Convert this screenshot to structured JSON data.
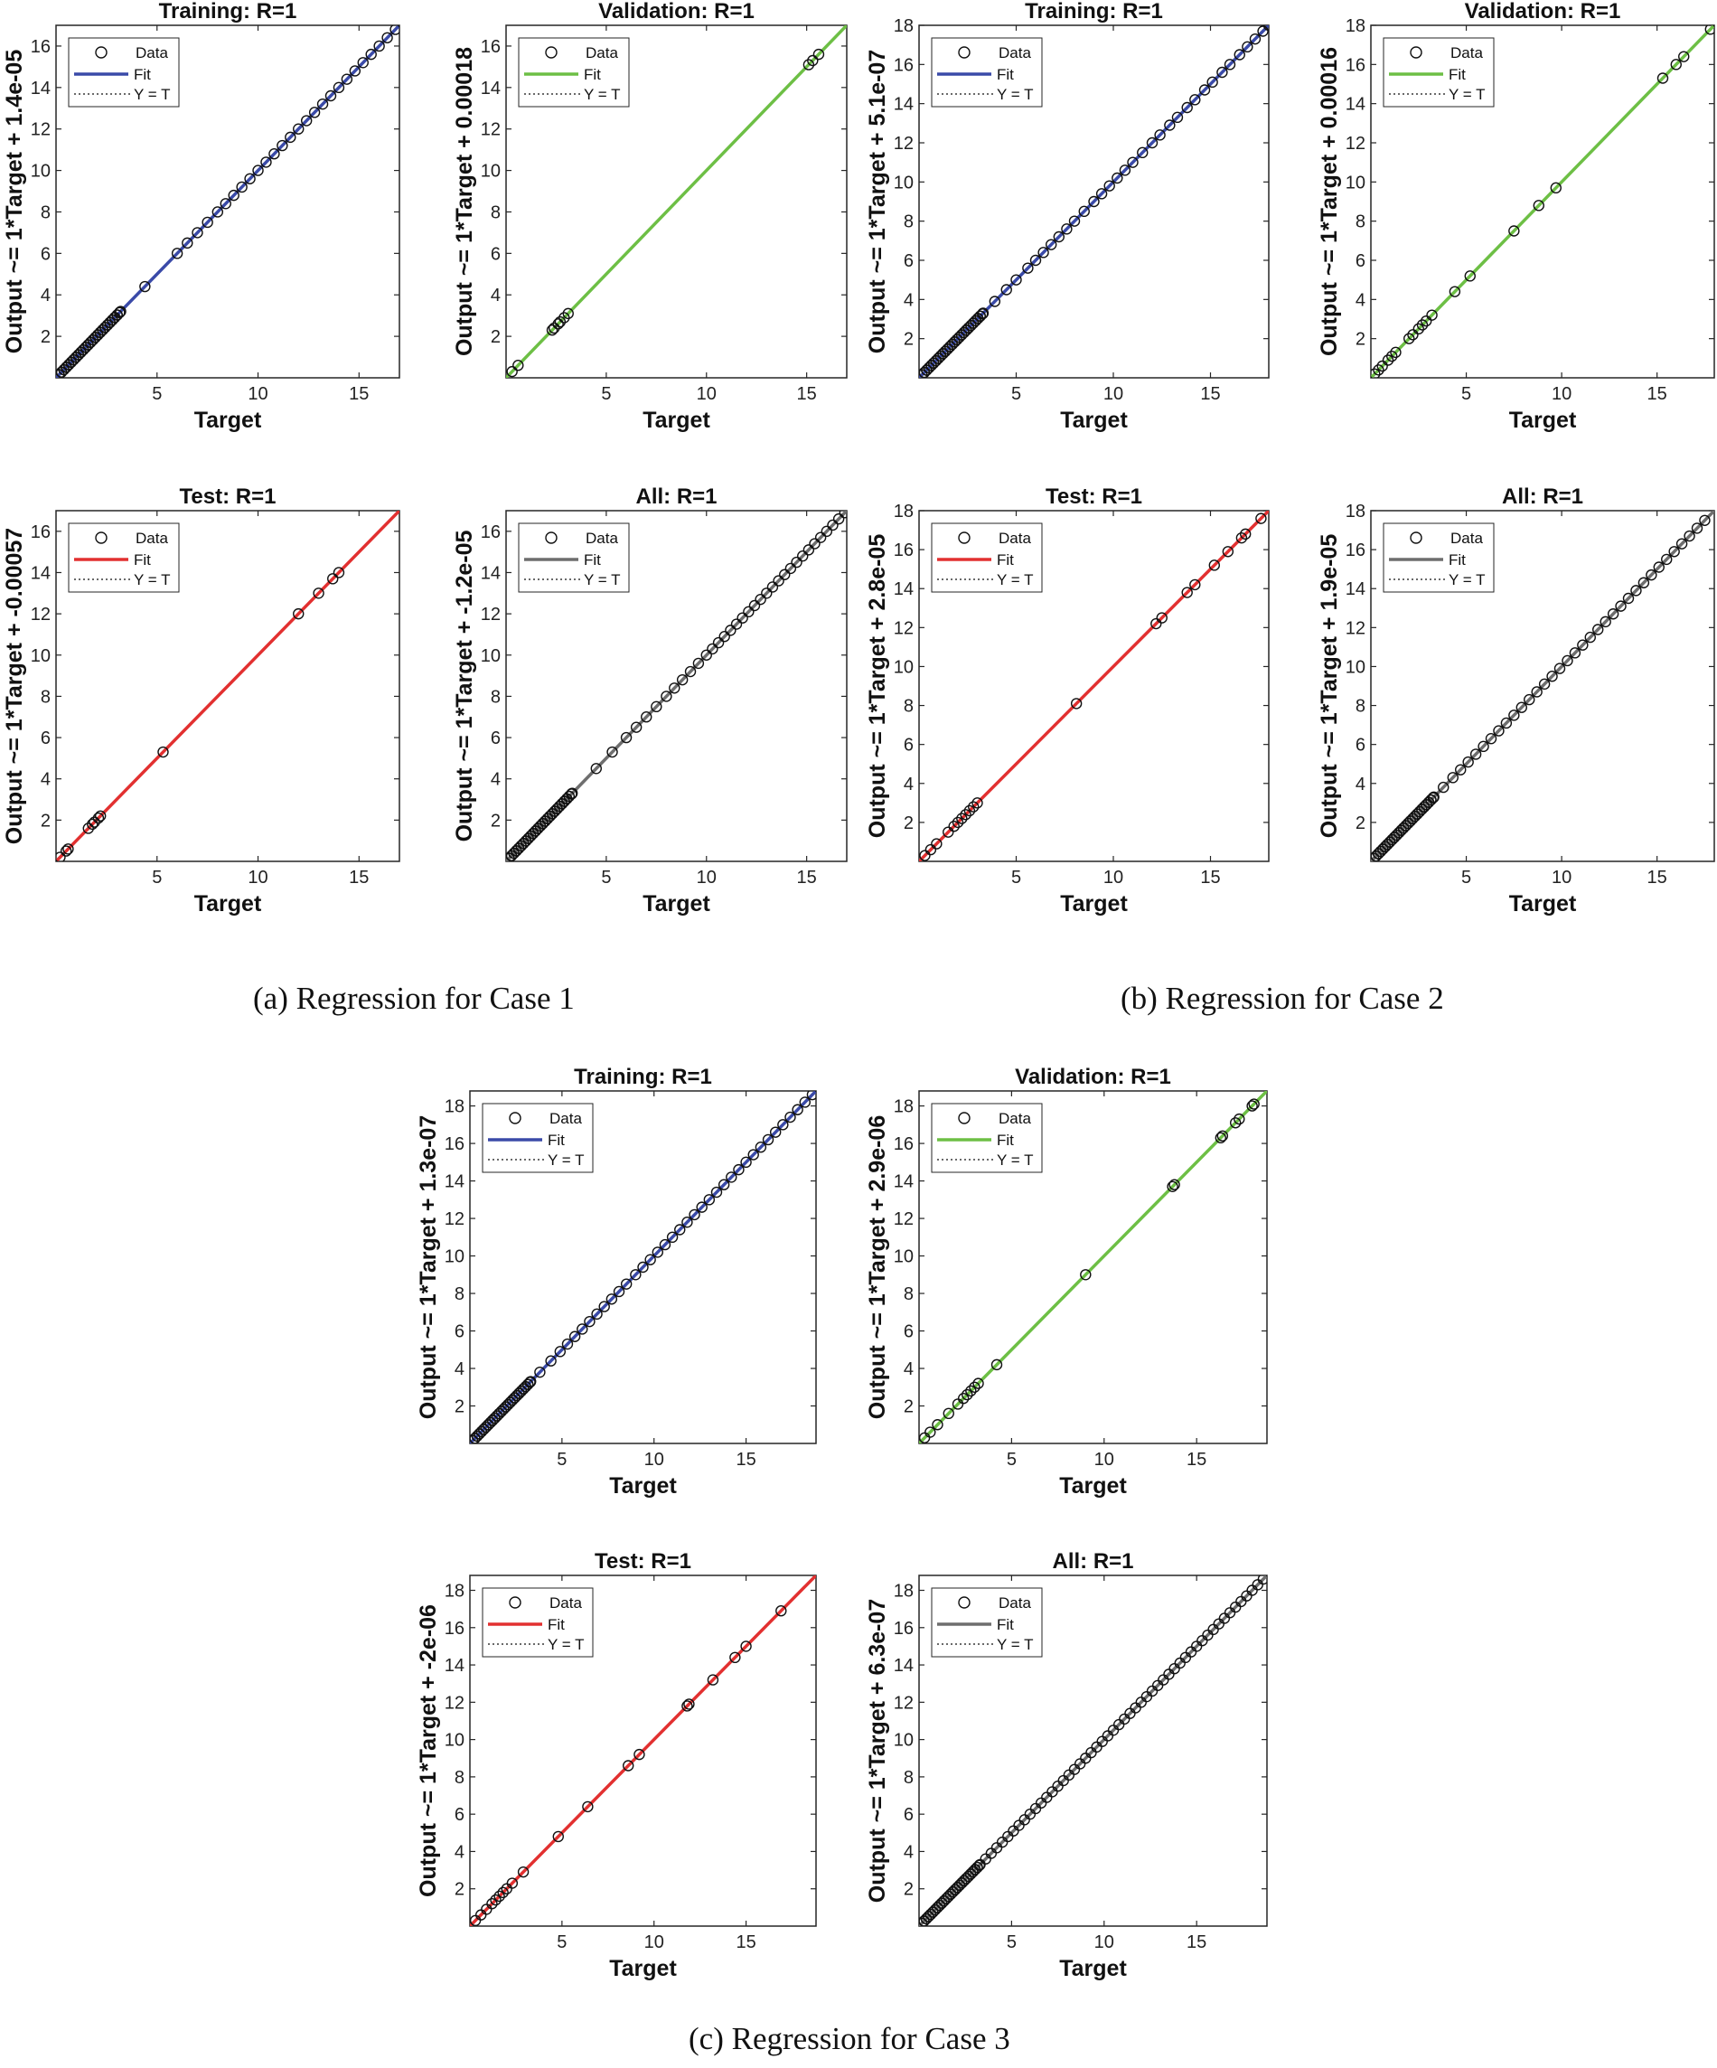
{
  "figure": {
    "captions": {
      "a": "(a)  Regression for Case 1",
      "b": "(b)  Regression for Case 2",
      "c": "(c)  Regression for Case 3"
    },
    "colors": {
      "Training": "#3a4aa8",
      "Validation": "#6dbf45",
      "Test": "#e23030",
      "All": "#6e6e6e",
      "marker": "#111111"
    }
  },
  "chart_data": [
    {
      "type": "scatter",
      "case": "1",
      "panel": "Training",
      "title": "Training: R=1",
      "xlabel": "Target",
      "ylabel": "Output ~= 1*Target + 1.4e-05",
      "xlim": [
        0,
        17
      ],
      "ylim": [
        0,
        17
      ],
      "xticks": [
        5,
        10,
        15
      ],
      "yticks": [
        2,
        4,
        6,
        8,
        10,
        12,
        14,
        16
      ],
      "legend": [
        "Data",
        "Fit",
        "Y = T"
      ],
      "legend_position": "top-left",
      "fit": {
        "slope": 1,
        "intercept": 1.4e-05
      },
      "points": [
        3.2,
        4.4,
        6,
        6.5,
        7,
        7.5,
        8,
        8.4,
        8.8,
        9.2,
        9.6,
        10,
        10.4,
        10.8,
        11.2,
        11.6,
        12,
        12.4,
        12.8,
        13.2,
        13.6,
        14,
        14.4,
        14.8,
        15.2,
        15.6,
        16,
        16.4,
        16.8
      ],
      "dense_to": 3.2
    },
    {
      "type": "scatter",
      "case": "1",
      "panel": "Validation",
      "title": "Validation: R=1",
      "xlabel": "Target",
      "ylabel": "Output ~= 1*Target + 0.00018",
      "xlim": [
        0,
        17
      ],
      "ylim": [
        0,
        17
      ],
      "xticks": [
        5,
        10,
        15
      ],
      "yticks": [
        2,
        4,
        6,
        8,
        10,
        12,
        14,
        16
      ],
      "legend": [
        "Data",
        "Fit",
        "Y = T"
      ],
      "legend_position": "top-left",
      "fit": {
        "slope": 1,
        "intercept": 0.00018
      },
      "points": [
        0.3,
        0.6,
        2.3,
        2.4,
        2.6,
        2.7,
        2.9,
        3.1,
        15.1,
        15.3,
        15.6
      ],
      "dense_to": 0
    },
    {
      "type": "scatter",
      "case": "2",
      "panel": "Training",
      "title": "Training: R=1",
      "xlabel": "Target",
      "ylabel": "Output ~= 1*Target + 5.1e-07",
      "xlim": [
        0,
        18
      ],
      "ylim": [
        0,
        18
      ],
      "xticks": [
        5,
        10,
        15
      ],
      "yticks": [
        2,
        4,
        6,
        8,
        10,
        12,
        14,
        16,
        18
      ],
      "legend": [
        "Data",
        "Fit",
        "Y = T"
      ],
      "legend_position": "top-left",
      "fit": {
        "slope": 1,
        "intercept": 5.1e-07
      },
      "points": [
        3.3,
        3.9,
        4.5,
        5,
        5.6,
        6,
        6.4,
        6.8,
        7.2,
        7.6,
        8,
        8.5,
        9,
        9.4,
        9.8,
        10.2,
        10.6,
        11,
        11.5,
        12,
        12.4,
        12.9,
        13.3,
        13.8,
        14.2,
        14.7,
        15.1,
        15.6,
        16,
        16.5,
        16.9,
        17.3,
        17.7,
        18
      ],
      "dense_to": 3.3
    },
    {
      "type": "scatter",
      "case": "2",
      "panel": "Validation",
      "title": "Validation: R=1",
      "xlabel": "Target",
      "ylabel": "Output ~= 1*Target + 0.00016",
      "xlim": [
        0,
        18
      ],
      "ylim": [
        0,
        18
      ],
      "xticks": [
        5,
        10,
        15
      ],
      "yticks": [
        2,
        4,
        6,
        8,
        10,
        12,
        14,
        16,
        18
      ],
      "legend": [
        "Data",
        "Fit",
        "Y = T"
      ],
      "legend_position": "top-left",
      "fit": {
        "slope": 1,
        "intercept": 0.00016
      },
      "points": [
        0.2,
        0.4,
        0.6,
        0.9,
        1.1,
        1.3,
        2,
        2.2,
        2.5,
        2.7,
        2.9,
        3.2,
        4.4,
        5.2,
        7.5,
        8.8,
        9.7,
        15.3,
        16,
        16.4,
        17.8
      ],
      "dense_to": 0
    },
    {
      "type": "scatter",
      "case": "1",
      "panel": "Test",
      "title": "Test: R=1",
      "xlabel": "Target",
      "ylabel": "Output ~= 1*Target + -0.00057",
      "xlim": [
        0,
        17
      ],
      "ylim": [
        0,
        17
      ],
      "xticks": [
        5,
        10,
        15
      ],
      "yticks": [
        2,
        4,
        6,
        8,
        10,
        12,
        14,
        16
      ],
      "legend": [
        "Data",
        "Fit",
        "Y = T"
      ],
      "legend_position": "top-left",
      "fit": {
        "slope": 1,
        "intercept": -0.00057
      },
      "points": [
        0.2,
        0.5,
        0.6,
        1.6,
        1.8,
        1.9,
        2.1,
        2.2,
        5.3,
        12,
        13,
        13.7,
        14
      ],
      "dense_to": 0
    },
    {
      "type": "scatter",
      "case": "1",
      "panel": "All",
      "title": "All: R=1",
      "xlabel": "Target",
      "ylabel": "Output ~= 1*Target + -1.2e-05",
      "xlim": [
        0,
        17
      ],
      "ylim": [
        0,
        17
      ],
      "xticks": [
        5,
        10,
        15
      ],
      "yticks": [
        2,
        4,
        6,
        8,
        10,
        12,
        14,
        16
      ],
      "legend": [
        "Data",
        "Fit",
        "Y = T"
      ],
      "legend_position": "top-left",
      "fit": {
        "slope": 1,
        "intercept": -1.2e-05
      },
      "points": [
        3.3,
        4.5,
        5.3,
        6,
        6.5,
        7,
        7.5,
        8,
        8.4,
        8.8,
        9.2,
        9.6,
        10,
        10.3,
        10.6,
        10.9,
        11.2,
        11.5,
        11.8,
        12.1,
        12.4,
        12.7,
        13,
        13.3,
        13.6,
        13.9,
        14.2,
        14.5,
        14.8,
        15.1,
        15.4,
        15.7,
        16,
        16.3,
        16.6,
        16.9
      ],
      "dense_to": 3.3
    },
    {
      "type": "scatter",
      "case": "2",
      "panel": "Test",
      "title": "Test: R=1",
      "xlabel": "Target",
      "ylabel": "Output ~= 1*Target + 2.8e-05",
      "xlim": [
        0,
        18
      ],
      "ylim": [
        0,
        18
      ],
      "xticks": [
        5,
        10,
        15
      ],
      "yticks": [
        2,
        4,
        6,
        8,
        10,
        12,
        14,
        16,
        18
      ],
      "legend": [
        "Data",
        "Fit",
        "Y = T"
      ],
      "legend_position": "top-left",
      "fit": {
        "slope": 1,
        "intercept": 2.8e-05
      },
      "points": [
        0.3,
        0.6,
        0.9,
        1.5,
        1.8,
        2,
        2.2,
        2.4,
        2.6,
        2.8,
        3,
        8.1,
        12.2,
        12.5,
        13.8,
        14.2,
        15.2,
        15.9,
        16.6,
        16.8,
        17.6
      ],
      "dense_to": 0
    },
    {
      "type": "scatter",
      "case": "2",
      "panel": "All",
      "title": "All: R=1",
      "xlabel": "Target",
      "ylabel": "Output ~= 1*Target + 1.9e-05",
      "xlim": [
        0,
        18
      ],
      "ylim": [
        0,
        18
      ],
      "xticks": [
        5,
        10,
        15
      ],
      "yticks": [
        2,
        4,
        6,
        8,
        10,
        12,
        14,
        16,
        18
      ],
      "legend": [
        "Data",
        "Fit",
        "Y = T"
      ],
      "legend_position": "top-left",
      "fit": {
        "slope": 1,
        "intercept": 1.9e-05
      },
      "points": [
        3.3,
        3.8,
        4.3,
        4.7,
        5.1,
        5.5,
        5.9,
        6.3,
        6.7,
        7.1,
        7.5,
        7.9,
        8.3,
        8.7,
        9.1,
        9.5,
        9.9,
        10.3,
        10.7,
        11.1,
        11.5,
        11.9,
        12.3,
        12.7,
        13.1,
        13.5,
        13.9,
        14.3,
        14.7,
        15.1,
        15.5,
        15.9,
        16.3,
        16.7,
        17.1,
        17.5
      ],
      "dense_to": 3.3
    },
    {
      "type": "scatter",
      "case": "3",
      "panel": "Training",
      "title": "Training: R=1",
      "xlabel": "Target",
      "ylabel": "Output ~= 1*Target + 1.3e-07",
      "xlim": [
        0,
        18.8
      ],
      "ylim": [
        0,
        18.8
      ],
      "xticks": [
        5,
        10,
        15
      ],
      "yticks": [
        2,
        4,
        6,
        8,
        10,
        12,
        14,
        16,
        18
      ],
      "legend": [
        "Data",
        "Fit",
        "Y = T"
      ],
      "legend_position": "top-left",
      "fit": {
        "slope": 1,
        "intercept": 1.3e-07
      },
      "points": [
        3.3,
        3.8,
        4.4,
        4.9,
        5.3,
        5.7,
        6.1,
        6.5,
        6.9,
        7.3,
        7.7,
        8.1,
        8.5,
        9,
        9.4,
        9.8,
        10.2,
        10.6,
        11,
        11.4,
        11.8,
        12.2,
        12.6,
        13,
        13.4,
        13.8,
        14.2,
        14.6,
        15,
        15.4,
        15.8,
        16.2,
        16.6,
        17,
        17.4,
        17.8,
        18.2,
        18.6
      ],
      "dense_to": 3.3
    },
    {
      "type": "scatter",
      "case": "3",
      "panel": "Validation",
      "title": "Validation: R=1",
      "xlabel": "Target",
      "ylabel": "Output ~= 1*Target + 2.9e-06",
      "xlim": [
        0,
        18.8
      ],
      "ylim": [
        0,
        18.8
      ],
      "xticks": [
        5,
        10,
        15
      ],
      "yticks": [
        2,
        4,
        6,
        8,
        10,
        12,
        14,
        16,
        18
      ],
      "legend": [
        "Data",
        "Fit",
        "Y = T"
      ],
      "legend_position": "top-left",
      "fit": {
        "slope": 1,
        "intercept": 2.9e-06
      },
      "points": [
        0.3,
        0.6,
        1,
        1.6,
        2.1,
        2.4,
        2.6,
        2.8,
        3,
        3.2,
        4.2,
        9,
        13.7,
        13.8,
        16.3,
        16.4,
        17.1,
        17.3,
        18,
        18.1
      ],
      "dense_to": 0
    },
    {
      "type": "scatter",
      "case": "3",
      "panel": "Test",
      "title": "Test: R=1",
      "xlabel": "Target",
      "ylabel": "Output ~= 1*Target + -2e-06",
      "xlim": [
        0,
        18.8
      ],
      "ylim": [
        0,
        18.8
      ],
      "xticks": [
        5,
        10,
        15
      ],
      "yticks": [
        2,
        4,
        6,
        8,
        10,
        12,
        14,
        16,
        18
      ],
      "legend": [
        "Data",
        "Fit",
        "Y = T"
      ],
      "legend_position": "top-left",
      "fit": {
        "slope": 1,
        "intercept": -2e-06
      },
      "points": [
        0.3,
        0.6,
        0.9,
        1.2,
        1.4,
        1.6,
        1.8,
        2,
        2.3,
        2.9,
        4.8,
        6.4,
        8.6,
        9.2,
        11.8,
        11.9,
        13.2,
        14.4,
        15,
        16.9
      ],
      "dense_to": 0
    },
    {
      "type": "scatter",
      "case": "3",
      "panel": "All",
      "title": "All: R=1",
      "xlabel": "Target",
      "ylabel": "Output ~= 1*Target + 6.3e-07",
      "xlim": [
        0,
        18.8
      ],
      "ylim": [
        0,
        18.8
      ],
      "xticks": [
        5,
        10,
        15
      ],
      "yticks": [
        2,
        4,
        6,
        8,
        10,
        12,
        14,
        16,
        18
      ],
      "legend": [
        "Data",
        "Fit",
        "Y = T"
      ],
      "legend_position": "top-left",
      "fit": {
        "slope": 1,
        "intercept": 6.3e-07
      },
      "points": [
        3.3,
        3.6,
        3.9,
        4.2,
        4.5,
        4.8,
        5.1,
        5.4,
        5.7,
        6,
        6.3,
        6.6,
        6.9,
        7.2,
        7.5,
        7.8,
        8.1,
        8.4,
        8.7,
        9,
        9.3,
        9.6,
        9.9,
        10.2,
        10.5,
        10.8,
        11.1,
        11.4,
        11.7,
        12,
        12.3,
        12.6,
        12.9,
        13.2,
        13.5,
        13.8,
        14.1,
        14.4,
        14.7,
        15,
        15.3,
        15.6,
        15.9,
        16.2,
        16.5,
        16.8,
        17.1,
        17.4,
        17.7,
        18,
        18.3,
        18.6
      ],
      "dense_to": 3.3
    }
  ]
}
